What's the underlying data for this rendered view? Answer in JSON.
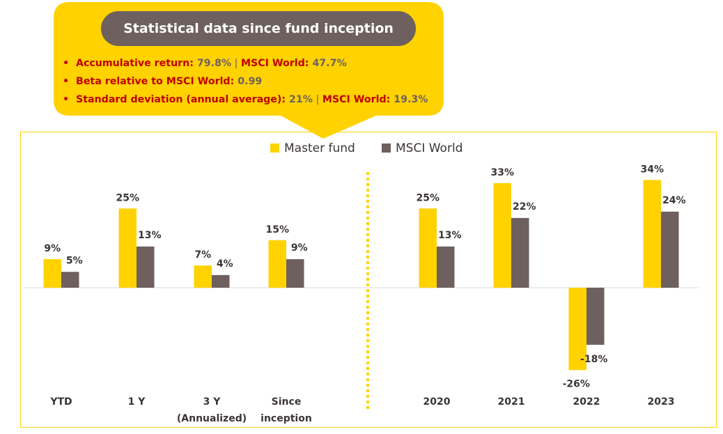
{
  "callout": {
    "title": "Statistical data since fund inception",
    "stats": [
      {
        "parts": [
          {
            "t": "Accumulative return: ",
            "k": "lbl"
          },
          {
            "t": "79.8%",
            "k": "val"
          },
          {
            "t": " | ",
            "k": "sep"
          },
          {
            "t": "MSCI World: ",
            "k": "lbl"
          },
          {
            "t": "47.7%",
            "k": "val"
          }
        ]
      },
      {
        "parts": [
          {
            "t": "Beta relative to MSCI World: ",
            "k": "lbl"
          },
          {
            "t": "0.99",
            "k": "val"
          }
        ]
      },
      {
        "parts": [
          {
            "t": "Standard deviation (annual average): ",
            "k": "lbl"
          },
          {
            "t": "21%",
            "k": "val"
          },
          {
            "t": " | ",
            "k": "sep"
          },
          {
            "t": "MSCI World: ",
            "k": "lbl"
          },
          {
            "t": "19.3%",
            "k": "val"
          }
        ]
      }
    ],
    "bullet": "•"
  },
  "colors": {
    "master_fund": "#ffd200",
    "msci_world": "#6d605e",
    "label_red": "#c00000",
    "text_dark": "#3b3535",
    "baseline": "#e6e6e6"
  },
  "chart_data": {
    "type": "bar",
    "title": "",
    "xlabel": "",
    "ylabel": "",
    "ylim": [
      -26,
      34
    ],
    "grid": false,
    "legend_position": "top-center",
    "categories": [
      "YTD",
      "1 Y",
      "3 Y (Annualized)",
      "Since inception",
      "2020",
      "2021",
      "2022",
      "2023"
    ],
    "category_lines": [
      [
        "YTD"
      ],
      [
        "1 Y"
      ],
      [
        "3 Y",
        "(Annualized)"
      ],
      [
        "Since",
        "inception"
      ],
      [
        "2020"
      ],
      [
        "2021"
      ],
      [
        "2022"
      ],
      [
        "2023"
      ]
    ],
    "groups_separator_after": 3,
    "series": [
      {
        "name": "Master fund",
        "values": [
          9,
          25,
          7,
          15,
          25,
          33,
          -26,
          34
        ],
        "labels": [
          "9%",
          "25%",
          "7%",
          "15%",
          "25%",
          "33%",
          "-26%",
          "34%"
        ]
      },
      {
        "name": "MSCI World",
        "values": [
          5,
          13,
          4,
          9,
          13,
          22,
          -18,
          24
        ],
        "labels": [
          "5%",
          "13%",
          "4%",
          "9%",
          "13%",
          "22%",
          "-18%",
          "24%"
        ]
      }
    ]
  }
}
